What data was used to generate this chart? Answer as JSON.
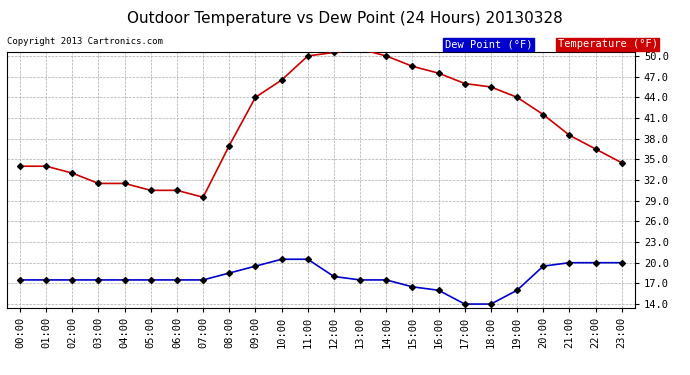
{
  "title": "Outdoor Temperature vs Dew Point (24 Hours) 20130328",
  "copyright": "Copyright 2013 Cartronics.com",
  "legend_dew": "Dew Point (°F)",
  "legend_temp": "Temperature (°F)",
  "x_labels": [
    "00:00",
    "01:00",
    "02:00",
    "03:00",
    "04:00",
    "05:00",
    "06:00",
    "07:00",
    "08:00",
    "09:00",
    "10:00",
    "11:00",
    "12:00",
    "13:00",
    "14:00",
    "15:00",
    "16:00",
    "17:00",
    "18:00",
    "19:00",
    "20:00",
    "21:00",
    "22:00",
    "23:00"
  ],
  "temperature": [
    34.0,
    34.0,
    33.0,
    31.5,
    31.5,
    30.5,
    30.5,
    29.5,
    37.0,
    44.0,
    46.5,
    50.0,
    50.5,
    51.0,
    50.0,
    48.5,
    47.5,
    46.0,
    45.5,
    44.0,
    41.5,
    38.5,
    36.5,
    34.5
  ],
  "dew_point": [
    17.5,
    17.5,
    17.5,
    17.5,
    17.5,
    17.5,
    17.5,
    17.5,
    18.5,
    19.5,
    20.5,
    20.5,
    18.0,
    17.5,
    17.5,
    16.5,
    16.0,
    14.0,
    14.0,
    16.0,
    19.5,
    20.0,
    20.0,
    20.0
  ],
  "temp_color": "#cc0000",
  "dew_color": "#0000cc",
  "ylim_min": 13.5,
  "ylim_max": 50.5,
  "yticks": [
    14.0,
    17.0,
    20.0,
    23.0,
    26.0,
    29.0,
    32.0,
    35.0,
    38.0,
    41.0,
    44.0,
    47.0,
    50.0
  ],
  "bg_color": "#ffffff",
  "grid_color": "#aaaaaa",
  "marker": "D",
  "marker_size": 3,
  "linewidth": 1.2,
  "title_fontsize": 11,
  "tick_fontsize": 7.5,
  "legend_bg_dew": "#0000cc",
  "legend_bg_temp": "#cc0000",
  "legend_text_color": "#ffffff",
  "legend_fontsize": 7.5
}
